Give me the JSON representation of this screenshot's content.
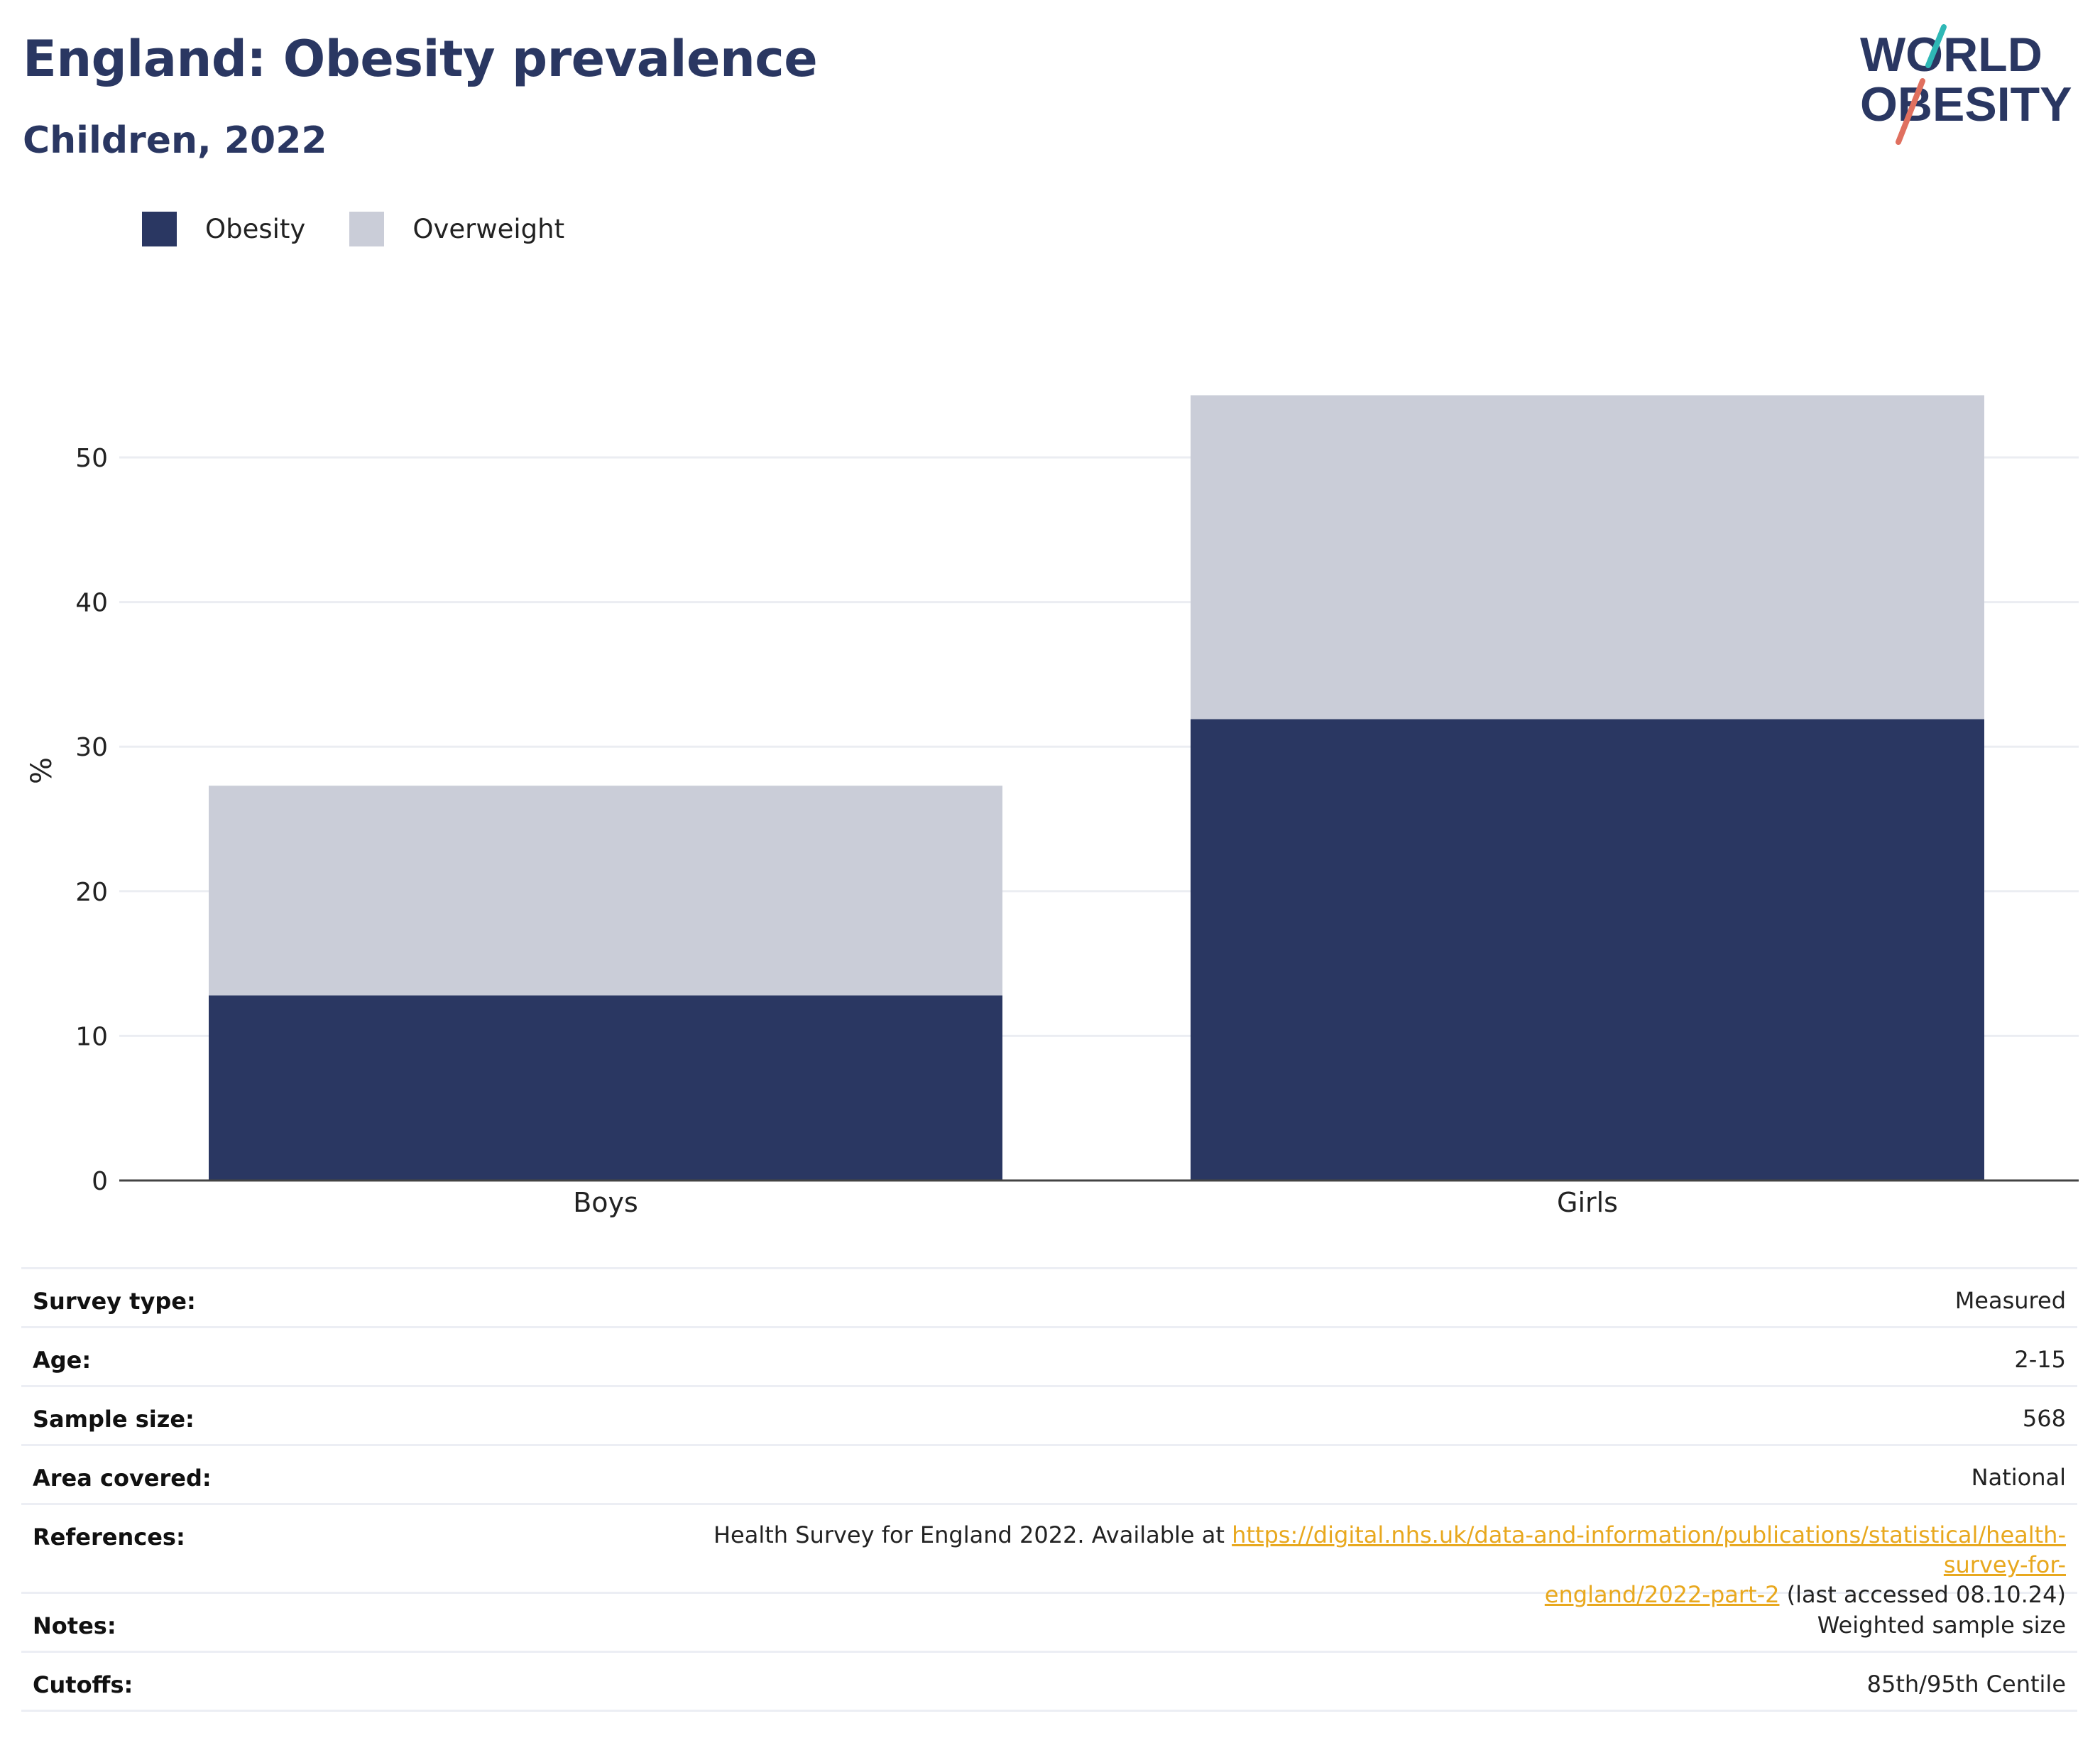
{
  "header": {
    "title": "England: Obesity prevalence",
    "subtitle": "Children, 2022",
    "logo_line1": "WORLD",
    "logo_line2": "OBESITY"
  },
  "legend": [
    {
      "label": "Obesity",
      "color": "#2a3762"
    },
    {
      "label": "Overweight",
      "color": "#cacdd8"
    }
  ],
  "chart_data": {
    "type": "bar",
    "stacked": true,
    "categories": [
      "Boys",
      "Girls"
    ],
    "series": [
      {
        "name": "Obesity",
        "color": "#2a3762",
        "values": [
          12.8,
          31.9
        ]
      },
      {
        "name": "Overweight",
        "color": "#cacdd8",
        "values": [
          14.5,
          22.4
        ]
      }
    ],
    "ylabel": "%",
    "ylim": [
      0,
      55
    ],
    "yticks": [
      0,
      10,
      20,
      30,
      40,
      50
    ],
    "grid": true,
    "legend_position": "top-left"
  },
  "meta": {
    "survey_type": {
      "label": "Survey type:",
      "value": "Measured"
    },
    "age": {
      "label": "Age:",
      "value": "2-15"
    },
    "sample_size": {
      "label": "Sample size:",
      "value": "568"
    },
    "area": {
      "label": "Area covered:",
      "value": "National"
    },
    "references": {
      "label": "References:",
      "prefix": "Health Survey for England 2022. Available at ",
      "link_line1": "https://digital.nhs.uk/data-and-information/publications/statistical/health-survey-for-",
      "link_line2": "england/2022-part-2",
      "suffix": " (last accessed 08.10.24)"
    },
    "notes": {
      "label": "Notes:",
      "value": "Weighted sample size"
    },
    "cutoffs": {
      "label": "Cutoffs:",
      "value": "85th/95th Centile"
    }
  }
}
